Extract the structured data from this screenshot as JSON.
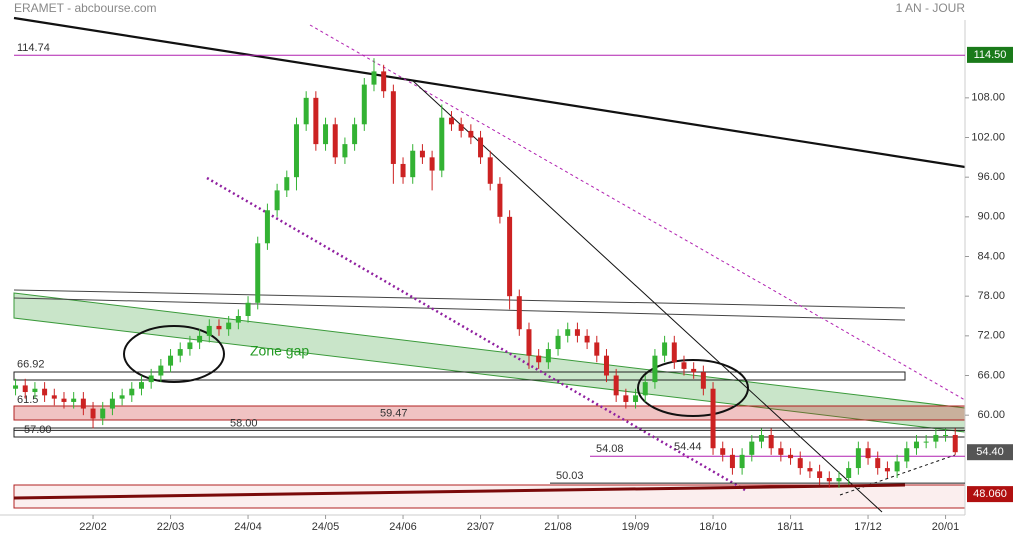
{
  "header": {
    "title": "ERAMET - abcbourse.com",
    "period": "1 AN - JOUR"
  },
  "chart_data": {
    "type": "candlestick",
    "categories": [
      null,
      null,
      null,
      null,
      null,
      null,
      null,
      null,
      "22/02",
      null,
      null,
      null,
      null,
      null,
      null,
      null,
      "22/03",
      null,
      null,
      null,
      null,
      null,
      null,
      null,
      "24/04",
      null,
      null,
      null,
      null,
      null,
      null,
      null,
      "24/05",
      null,
      null,
      null,
      null,
      null,
      null,
      null,
      "24/06",
      null,
      null,
      null,
      null,
      null,
      null,
      null,
      "23/07",
      null,
      null,
      null,
      null,
      null,
      null,
      null,
      "21/08",
      null,
      null,
      null,
      null,
      null,
      null,
      null,
      "19/09",
      null,
      null,
      null,
      null,
      null,
      null,
      null,
      "18/10",
      null,
      null,
      null,
      null,
      null,
      null,
      null,
      "18/11",
      null,
      null,
      null,
      null,
      null,
      null,
      null,
      "17/12",
      null,
      null,
      null,
      null,
      null,
      null,
      null,
      "20/01",
      null
    ],
    "open": [
      64,
      64.5,
      63.5,
      64,
      63,
      62.5,
      62,
      62.5,
      61,
      59.5,
      61,
      62.5,
      63,
      64,
      65,
      66,
      67.5,
      69,
      70,
      71,
      72,
      73.5,
      73,
      74,
      75,
      77,
      86,
      91,
      94,
      96,
      104,
      108,
      101,
      104,
      99,
      101,
      104,
      110,
      112,
      109,
      98,
      96,
      100,
      99,
      97,
      105,
      104,
      103,
      102,
      99,
      95,
      90,
      78,
      73,
      69,
      68,
      70,
      72,
      73,
      72,
      71,
      69,
      66,
      63,
      62,
      63,
      65,
      69,
      71,
      68,
      67,
      66.5,
      64,
      55,
      54,
      52,
      54,
      56,
      57,
      55,
      54,
      53.5,
      52,
      51.5,
      50.5,
      50,
      50.5,
      52,
      55,
      53.5,
      52,
      51.5,
      53,
      55,
      56,
      56,
      57,
      57
    ],
    "high": [
      65.5,
      65.5,
      65,
      65,
      64,
      63.5,
      63.5,
      63.5,
      62,
      62,
      63.5,
      64,
      65,
      66,
      67,
      68.5,
      70,
      71,
      72,
      73,
      74.5,
      74.5,
      75,
      76,
      78,
      87,
      92,
      95,
      97,
      105,
      109,
      109,
      105,
      105,
      102,
      105,
      111,
      114,
      113,
      110,
      99,
      101,
      101,
      100,
      107,
      106,
      105,
      104,
      103,
      100,
      96,
      91,
      79,
      74,
      70,
      71,
      73,
      74,
      74,
      73,
      72,
      70,
      67,
      64,
      64,
      66,
      70,
      72,
      72,
      69,
      68,
      67.5,
      65,
      56,
      55,
      55,
      57,
      58,
      58,
      56,
      55,
      54.5,
      53,
      52.5,
      51.5,
      51.5,
      53,
      56,
      56,
      54.5,
      53,
      54,
      56,
      57,
      57,
      58,
      58,
      58
    ],
    "low": [
      63,
      62.5,
      62.5,
      62,
      61.5,
      61,
      61,
      60,
      58,
      58.5,
      60,
      61.5,
      62,
      63,
      64,
      65,
      66.5,
      68,
      69,
      70,
      71,
      72,
      72,
      73,
      74,
      76,
      85,
      90,
      93,
      94,
      103,
      100,
      100,
      98,
      98,
      100,
      103,
      109,
      108,
      95,
      95,
      95,
      98,
      94,
      96,
      103,
      102,
      101,
      98,
      94,
      89,
      76,
      72,
      67,
      67,
      67,
      69,
      71,
      71,
      70,
      68,
      65,
      62,
      61,
      61,
      62,
      64,
      68,
      67,
      66,
      65.5,
      63,
      54,
      53,
      51,
      51,
      53,
      55,
      54,
      53,
      52.5,
      51,
      50.5,
      49.5,
      49,
      49,
      49.5,
      51,
      52.5,
      51,
      50.5,
      50.5,
      52,
      54,
      55,
      55,
      56,
      54
    ],
    "close": [
      64.5,
      63.5,
      64,
      63,
      62.5,
      62,
      62.5,
      61,
      59.5,
      61,
      62.5,
      63,
      64,
      65,
      66,
      67.5,
      69,
      70,
      71,
      72,
      73.5,
      73,
      74,
      75,
      77,
      86,
      91,
      94,
      96,
      104,
      108,
      101,
      104,
      99,
      101,
      104,
      110,
      112,
      109,
      98,
      96,
      100,
      99,
      97,
      105,
      104,
      103,
      102,
      99,
      95,
      90,
      78,
      73,
      69,
      68,
      70,
      72,
      73,
      72,
      71,
      69,
      66,
      63,
      62,
      63,
      65,
      69,
      71,
      68,
      67,
      66.5,
      64,
      55,
      54,
      52,
      54,
      56,
      57,
      55,
      54,
      53.5,
      52,
      51.5,
      50.5,
      50,
      50.5,
      52,
      55,
      53.5,
      52,
      51.5,
      53,
      55,
      56,
      56,
      57,
      57,
      54.4
    ],
    "up_color": "#33b233",
    "down_color": "#cc2222",
    "ylim": [
      44.9,
      122.8
    ],
    "yticks": [
      {
        "value": 60,
        "label": "60.00"
      },
      {
        "value": 66,
        "label": "66.00"
      },
      {
        "value": 72,
        "label": "72.00"
      },
      {
        "value": 78,
        "label": "78.00"
      },
      {
        "value": 84,
        "label": "84.00"
      },
      {
        "value": 90,
        "label": "90.00"
      },
      {
        "value": 96,
        "label": "96.00"
      },
      {
        "value": 102,
        "label": "102.00"
      },
      {
        "value": 108,
        "label": "108.00"
      }
    ],
    "levels": [
      {
        "value": 114.74,
        "color": "#b020b0"
      },
      {
        "value": 66.92,
        "color": "#c07020"
      },
      {
        "value": 61.5,
        "color": "#c07020"
      },
      {
        "value": 59.47,
        "color": "#222"
      },
      {
        "value": 58,
        "label": "58.00",
        "color": "#222"
      },
      {
        "value": 57,
        "label": "57.00",
        "color": "#c07020"
      },
      {
        "value": 54.08,
        "color": "#b020b0"
      },
      {
        "value": 54.44,
        "color": "#b020b0"
      },
      {
        "value": 50.03,
        "color": "#222"
      }
    ],
    "price_tags": [
      {
        "value": 114.5,
        "label": "114.50",
        "color": "#1a7a1a"
      },
      {
        "value": 54.4,
        "label": "54.40",
        "color": "#555555"
      },
      {
        "value": 48.06,
        "label": "48.060",
        "color": "#b01010"
      }
    ],
    "annotation": "Zone gap"
  }
}
